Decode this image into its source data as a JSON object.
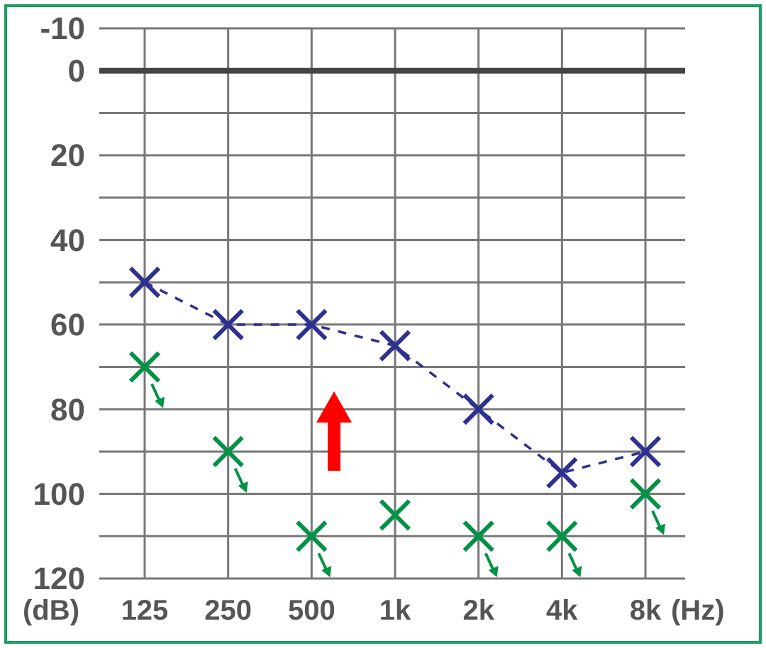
{
  "chart_data": {
    "type": "line",
    "xlabel": "(Hz)",
    "ylabel": "(dB)",
    "categories": [
      "125",
      "250",
      "500",
      "1k",
      "2k",
      "4k",
      "8k"
    ],
    "ylim": [
      120,
      -10
    ],
    "yticks": [
      -10,
      0,
      {
        "value": 10,
        "label": null
      },
      20,
      {
        "value": 30,
        "label": null
      },
      40,
      {
        "value": 50,
        "label": null
      },
      60,
      {
        "value": 70,
        "label": null
      },
      80,
      {
        "value": 90,
        "label": null
      },
      100,
      {
        "value": 110,
        "label": null
      },
      120
    ],
    "grid": true,
    "ref_lines": [
      {
        "axis": "y",
        "value": 0,
        "color": "#444444"
      }
    ],
    "series": [
      {
        "color": "#2e3192",
        "marker": "cross",
        "line_style": "dashed",
        "values": [
          50,
          60,
          60,
          65,
          80,
          95,
          90
        ]
      },
      {
        "type": "scatter",
        "color": "#009245",
        "marker": "cross",
        "values": [
          70,
          90,
          110,
          105,
          110,
          110,
          100
        ]
      }
    ]
  }
}
